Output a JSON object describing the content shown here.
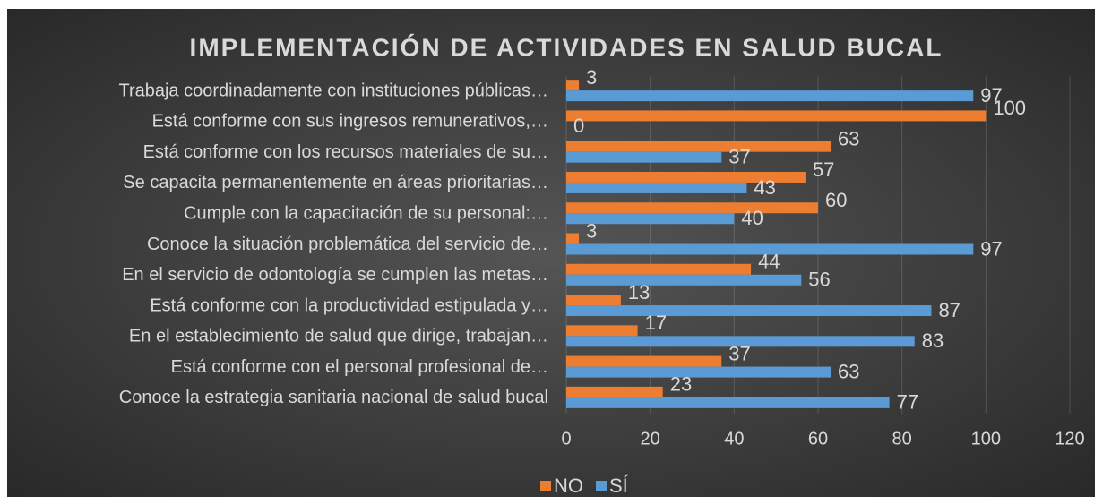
{
  "chart_data": {
    "type": "hbar",
    "title": "IMPLEMENTACIÓN DE ACTIVIDADES EN SALUD BUCAL",
    "categories": [
      "Trabaja coordinadamente con instituciones públicas…",
      "Está conforme con sus ingresos remunerativos,…",
      "Está conforme con los recursos materiales de su…",
      "Se capacita permanentemente en áreas prioritarias…",
      "Cumple con la capacitación de su personal:…",
      "Conoce la situación problemática del servicio de…",
      "En el servicio de odontología se cumplen las metas…",
      "Está conforme con la productividad estipulada y…",
      "En el establecimiento de salud que dirige, trabajan…",
      "Está conforme con el personal profesional de…",
      "Conoce la estrategia sanitaria nacional de salud bucal"
    ],
    "series": [
      {
        "name": "NO",
        "color": "#ed7d31",
        "values": [
          3,
          100,
          63,
          57,
          60,
          3,
          44,
          13,
          17,
          37,
          23
        ]
      },
      {
        "name": "SÍ",
        "color": "#5b9bd5",
        "values": [
          97,
          0,
          37,
          43,
          40,
          97,
          56,
          87,
          83,
          63,
          77
        ]
      }
    ],
    "xlim": [
      0,
      120
    ],
    "xticks": [
      0,
      20,
      40,
      60,
      80,
      100,
      120
    ],
    "grid": true,
    "legend": "bottom"
  }
}
